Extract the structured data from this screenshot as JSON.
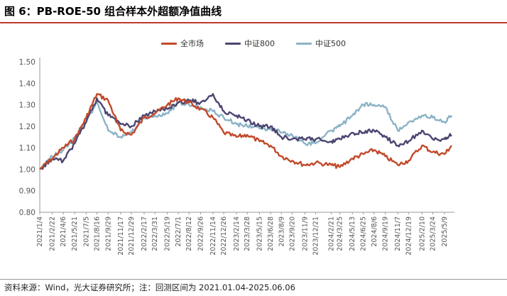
{
  "header": {
    "title": "图 6：PB-ROE-50 组合样本外超额净值曲线"
  },
  "footer": {
    "source": "资料来源：Wind，光大证券研究所；注：回测区间为 2021.01.04-2025.06.06"
  },
  "colors": {
    "title_rule": "#c0392b",
    "series": [
      "#c2492a",
      "#4a4570",
      "#8bb3c6"
    ]
  },
  "chart_data": {
    "type": "line",
    "title": "",
    "xlabel": "",
    "ylabel": "",
    "ylim": [
      0.8,
      1.5
    ],
    "yticks": [
      "0.80",
      "0.90",
      "1.00",
      "1.10",
      "1.20",
      "1.30",
      "1.40",
      "1.50"
    ],
    "legend_position": "top-center",
    "grid": false,
    "x_tick_labels": [
      "2021/1/4",
      "2021/2/22",
      "2021/4/6",
      "2021/5/21",
      "2021/7/5",
      "2021/8/16",
      "2021/9/29",
      "2021/11/17",
      "2021/12/29",
      "2022/2/17",
      "2022/3/31",
      "2022/5/19",
      "2022/7/1",
      "2022/8/12",
      "2022/9/26",
      "2022/11/14",
      "2022/12/26",
      "2023/2/14",
      "2023/3/28",
      "2023/5/15",
      "2023/6/28",
      "2023/8/9",
      "2023/9/20",
      "2023/11/9",
      "2023/12/21",
      "2024/2/21",
      "2024/3/25",
      "2024/5/13",
      "2024/6/25",
      "2024/8/6",
      "2024/9/19",
      "2024/11/7",
      "2024/12/19",
      "2025/2/10",
      "2025/3/24",
      "2025/5/9"
    ],
    "x": [
      "2021/1/4",
      "2021/2/22",
      "2021/4/6",
      "2021/5/21",
      "2021/7/5",
      "2021/8/16",
      "2021/9/29",
      "2021/11/17",
      "2021/12/29",
      "2022/2/17",
      "2022/3/31",
      "2022/5/19",
      "2022/7/1",
      "2022/8/12",
      "2022/9/26",
      "2022/11/14",
      "2022/12/26",
      "2023/2/14",
      "2023/3/28",
      "2023/5/15",
      "2023/6/28",
      "2023/8/9",
      "2023/9/20",
      "2023/11/9",
      "2023/12/21",
      "2024/2/21",
      "2024/3/25",
      "2024/5/13",
      "2024/6/25",
      "2024/8/6",
      "2024/9/19",
      "2024/11/7",
      "2024/12/19",
      "2025/2/10",
      "2025/3/24",
      "2025/5/9",
      "2025/6/6"
    ],
    "series": [
      {
        "name": "全市场",
        "values": [
          1.0,
          1.05,
          1.1,
          1.14,
          1.24,
          1.35,
          1.32,
          1.18,
          1.16,
          1.24,
          1.26,
          1.3,
          1.33,
          1.31,
          1.28,
          1.24,
          1.17,
          1.15,
          1.16,
          1.13,
          1.11,
          1.06,
          1.04,
          1.02,
          1.03,
          1.02,
          1.01,
          1.05,
          1.07,
          1.09,
          1.06,
          1.02,
          1.04,
          1.11,
          1.08,
          1.07,
          1.11
        ]
      },
      {
        "name": "中证800",
        "values": [
          1.0,
          1.05,
          1.04,
          1.12,
          1.22,
          1.33,
          1.25,
          1.21,
          1.2,
          1.25,
          1.27,
          1.28,
          1.31,
          1.32,
          1.31,
          1.35,
          1.27,
          1.25,
          1.23,
          1.2,
          1.2,
          1.15,
          1.14,
          1.14,
          1.14,
          1.13,
          1.14,
          1.17,
          1.17,
          1.18,
          1.15,
          1.11,
          1.13,
          1.18,
          1.14,
          1.14,
          1.16
        ]
      },
      {
        "name": "中证500",
        "values": [
          1.0,
          1.06,
          1.09,
          1.15,
          1.22,
          1.31,
          1.18,
          1.15,
          1.17,
          1.24,
          1.25,
          1.26,
          1.31,
          1.3,
          1.29,
          1.27,
          1.24,
          1.21,
          1.2,
          1.19,
          1.19,
          1.17,
          1.16,
          1.12,
          1.12,
          1.18,
          1.2,
          1.25,
          1.3,
          1.3,
          1.29,
          1.18,
          1.22,
          1.25,
          1.24,
          1.22,
          1.25
        ]
      }
    ]
  }
}
